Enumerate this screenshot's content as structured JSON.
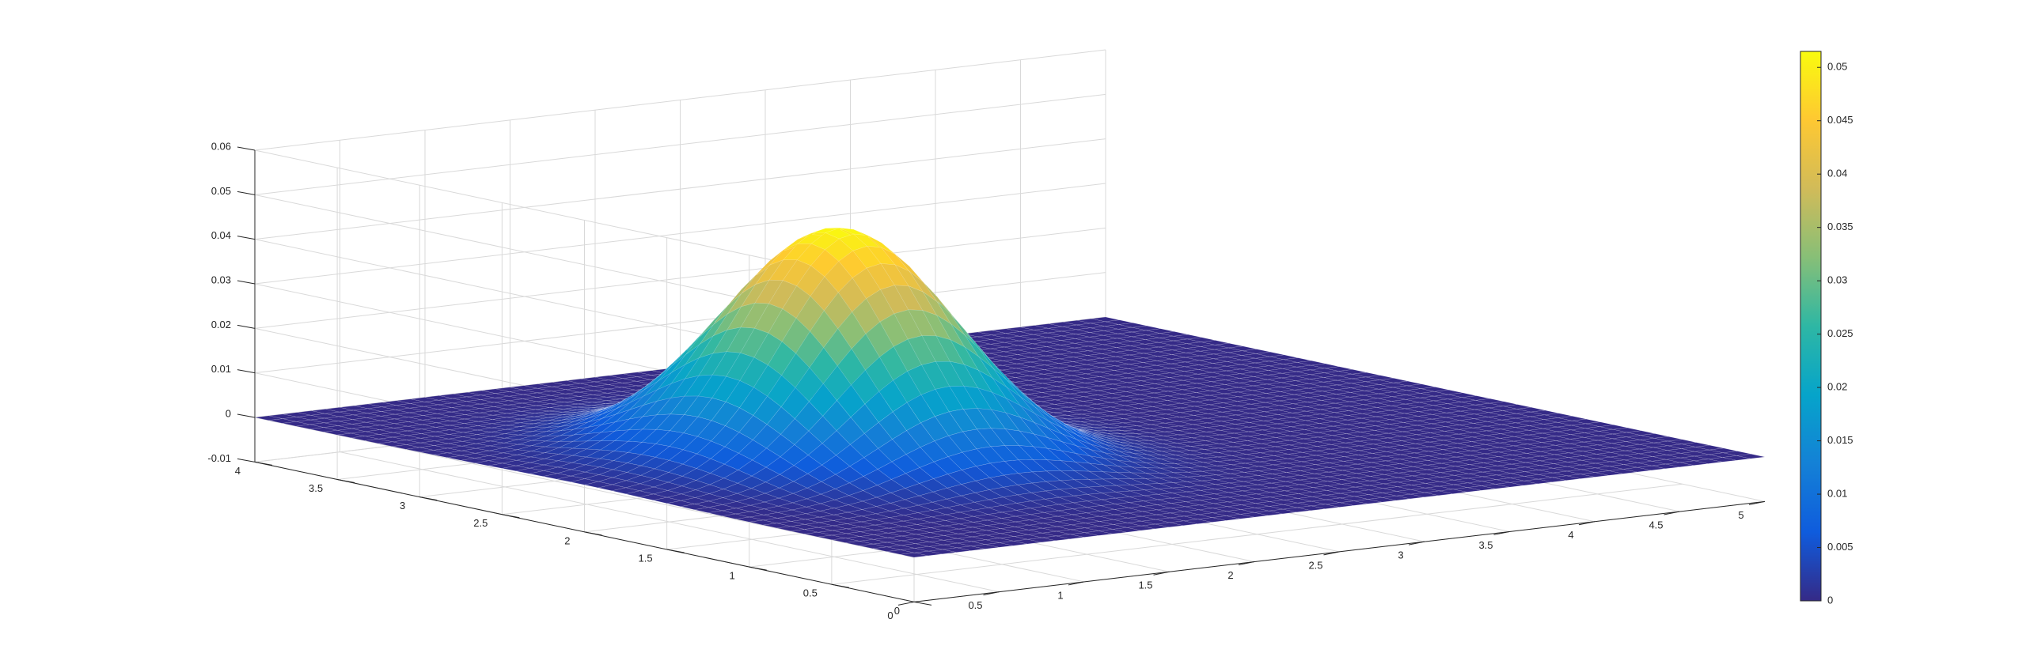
{
  "chart_data": {
    "type": "surface",
    "title": "",
    "xlabel": "",
    "ylabel": "",
    "zlabel": "",
    "grid": true,
    "colormap": "parula",
    "x_range": [
      0,
      5
    ],
    "y_range": [
      0,
      4
    ],
    "z_range": [
      -0.01,
      0.06
    ],
    "x_ticks": [
      "0",
      "0.5",
      "1",
      "1.5",
      "2",
      "2.5",
      "3",
      "3.5",
      "4",
      "4.5",
      "5"
    ],
    "y_ticks": [
      "0",
      "0.5",
      "1",
      "1.5",
      "2",
      "2.5",
      "3",
      "3.5",
      "4"
    ],
    "z_ticks": [
      "-0.01",
      "0",
      "0.01",
      "0.02",
      "0.03",
      "0.04",
      "0.05",
      "0.06"
    ],
    "surface": {
      "shape": "gaussian bump on a flat zero plane",
      "peak_z": 0.0515,
      "peak_x": 1.5,
      "peak_y": 2.0,
      "spread": 0.5,
      "base_z": 0
    },
    "colorbar": {
      "position": "right",
      "min": 0,
      "max": 0.0515,
      "ticks": [
        "0",
        "0.005",
        "0.01",
        "0.015",
        "0.02",
        "0.025",
        "0.03",
        "0.035",
        "0.04",
        "0.045",
        "0.05"
      ],
      "stops": [
        "#352a87",
        "#0f5cdd",
        "#1481d6",
        "#06a4ca",
        "#2eb7a4",
        "#87bf77",
        "#d1bb59",
        "#fec832",
        "#f9fb0e"
      ]
    },
    "colors": {
      "axis": "#262626",
      "grid": "#d9d9d9",
      "mesh": "#ffffff"
    }
  }
}
